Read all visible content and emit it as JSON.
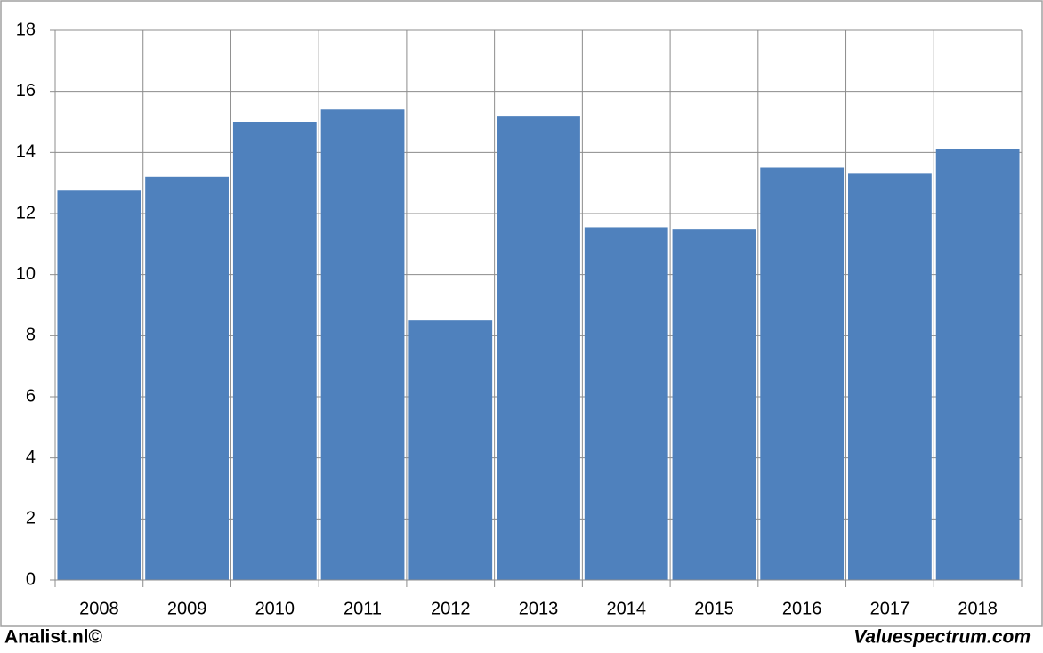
{
  "chart_data": {
    "type": "bar",
    "categories": [
      "2008",
      "2009",
      "2010",
      "2011",
      "2012",
      "2013",
      "2014",
      "2015",
      "2016",
      "2017",
      "2018"
    ],
    "values": [
      12.75,
      13.2,
      15.0,
      15.4,
      8.5,
      15.2,
      11.55,
      11.5,
      13.5,
      13.3,
      14.1
    ],
    "color": "#4f81bd",
    "ylim": [
      0,
      18
    ],
    "yticks": [
      0,
      2,
      4,
      6,
      8,
      10,
      12,
      14,
      16,
      18
    ],
    "grid": true,
    "credits": [
      "Analist.nl©",
      "Valuespectrum.com"
    ]
  }
}
